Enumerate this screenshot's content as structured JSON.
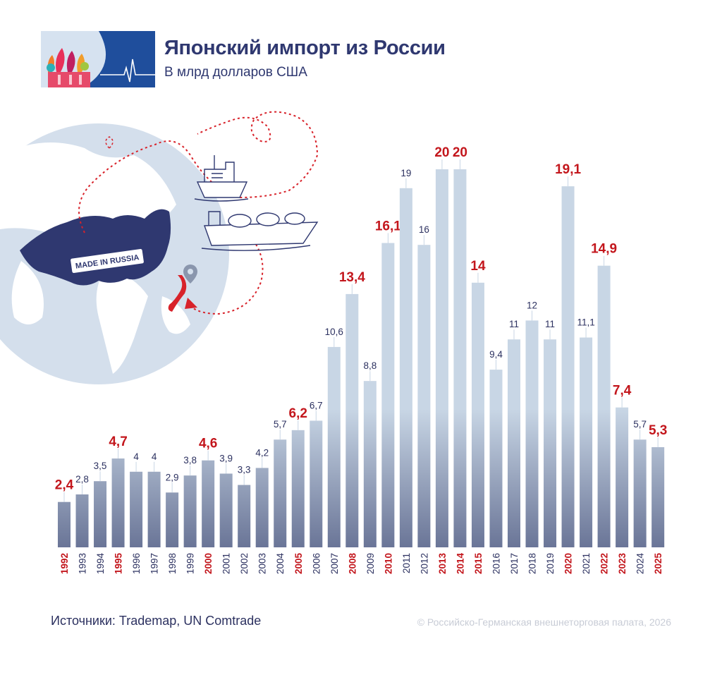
{
  "header": {
    "title": "Японский импорт из России",
    "subtitle": "В млрд долларов США"
  },
  "illustration": {
    "stamp_text": "MADE IN RUSSIA",
    "icons": [
      "globe-icon",
      "cargo-ship-icon",
      "lng-tanker-icon",
      "location-pin-icon",
      "cathedral-logo-icon"
    ]
  },
  "chart_data": {
    "type": "bar",
    "title": "Японский импорт из России",
    "subtitle": "В млрд долларов США",
    "ylabel": "",
    "xlabel": "",
    "ylim": [
      0,
      21
    ],
    "grid": false,
    "legend": "none",
    "categories": [
      "1992",
      "1993",
      "1994",
      "1995",
      "1996",
      "1997",
      "1998",
      "1999",
      "2000",
      "2001",
      "2002",
      "2003",
      "2004",
      "2005",
      "2006",
      "2007",
      "2008",
      "2009",
      "2010",
      "2011",
      "2012",
      "2013",
      "2014",
      "2015",
      "2016",
      "2017",
      "2018",
      "2019",
      "2020",
      "2021",
      "2022",
      "2023",
      "2024",
      "2025"
    ],
    "values": [
      2.4,
      2.8,
      3.5,
      4.7,
      4,
      4,
      2.9,
      3.8,
      4.6,
      3.9,
      3.3,
      4.2,
      5.7,
      6.2,
      6.7,
      10.6,
      13.4,
      8.8,
      16.1,
      19,
      16,
      20,
      20,
      14,
      9.4,
      11,
      12,
      11,
      19.1,
      11.1,
      14.9,
      7.4,
      5.7,
      5.3
    ],
    "value_labels": [
      "2,4",
      "2,8",
      "3,5",
      "4,7",
      "4",
      "4",
      "2,9",
      "3,8",
      "4,6",
      "3,9",
      "3,3",
      "4,2",
      "5,7",
      "6,2",
      "6,7",
      "10,6",
      "13,4",
      "8,8",
      "16,1",
      "19",
      "16",
      "20",
      "20",
      "14",
      "9,4",
      "11",
      "12",
      "11",
      "19,1",
      "11,1",
      "14,9",
      "7,4",
      "5,7",
      "5,3"
    ],
    "highlighted": [
      "1992",
      "1995",
      "2000",
      "2005",
      "2008",
      "2010",
      "2013",
      "2014",
      "2015",
      "2020",
      "2022",
      "2023",
      "2025"
    ]
  },
  "colors": {
    "bar": "#c8d6e5",
    "bar_bottom": "#6a7597",
    "highlight_text": "#c3161c",
    "normal_text": "#2c3160",
    "title": "#2f3870"
  },
  "footer": {
    "source": "Источники: Trademap, UN Comtrade",
    "copyright": "© Российско-Германская внешнеторговая палата, 2026"
  }
}
